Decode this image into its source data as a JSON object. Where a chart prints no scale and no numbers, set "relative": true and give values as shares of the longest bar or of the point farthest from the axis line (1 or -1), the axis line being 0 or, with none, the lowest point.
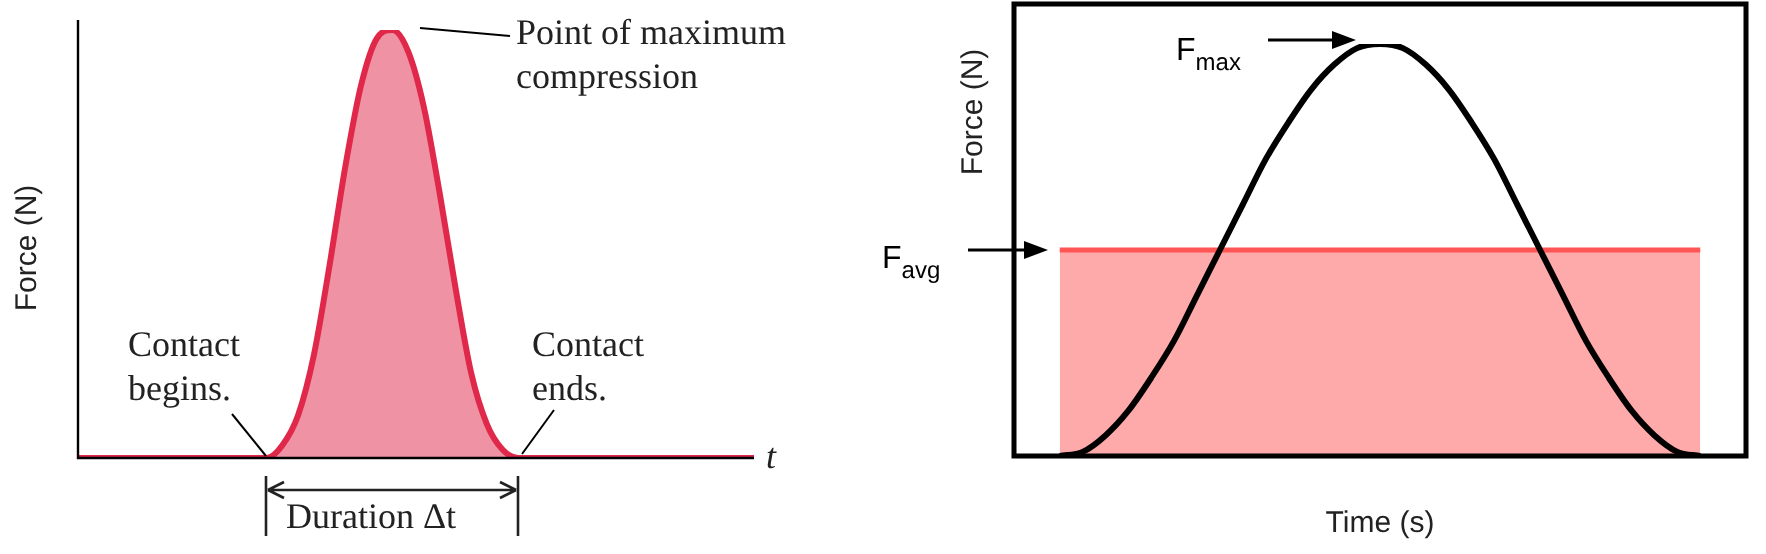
{
  "chart_data": [
    {
      "type": "area",
      "relative": true,
      "xlabel": "t",
      "ylabel": "Force (N)",
      "legend": false,
      "marker": "none",
      "categories": [
        null,
        null,
        null,
        null,
        null,
        null,
        null,
        null,
        null,
        null,
        null,
        null,
        null,
        null,
        null,
        null,
        null,
        null,
        null,
        null,
        null,
        null,
        null,
        null,
        null,
        null,
        null,
        null,
        null,
        null,
        null,
        null,
        null,
        null,
        null,
        null,
        null,
        null,
        null,
        null,
        null,
        null,
        null,
        null
      ],
      "series": [
        {
          "color": "#e0284a",
          "values": [
            0,
            0,
            0,
            0,
            0,
            0,
            0,
            0,
            0,
            0,
            0,
            0,
            0,
            0.03,
            0.1,
            0.24,
            0.45,
            0.68,
            0.87,
            0.98,
            1,
            0.95,
            0.82,
            0.62,
            0.4,
            0.2,
            0.08,
            0.02,
            0,
            0,
            0,
            0,
            0,
            0,
            0,
            0,
            0,
            0,
            0,
            0,
            0,
            0,
            0,
            0
          ]
        }
      ],
      "annotations": [
        "Point of maximum compression",
        "Contact begins.",
        "Contact ends.",
        "Duration Δt"
      ]
    },
    {
      "type": "line",
      "relative": true,
      "xlabel": "Time (s)",
      "ylabel": "Force (N)",
      "legend": false,
      "marker": "none",
      "categories": [
        null,
        null,
        null,
        null,
        null,
        null,
        null,
        null,
        null,
        null,
        null,
        null,
        null,
        null,
        null,
        null,
        null,
        null,
        null,
        null,
        null,
        null,
        null,
        null,
        null,
        null,
        null,
        null,
        null,
        null,
        null,
        null,
        null
      ],
      "series": [
        {
          "type": "area",
          "color": "#ff5555",
          "values": [
            null,
            null,
            0.5,
            0.5,
            0.5,
            0.5,
            0.5,
            0.5,
            0.5,
            0.5,
            0.5,
            0.5,
            0.5,
            0.5,
            0.5,
            0.5,
            0.5,
            0.5,
            0.5,
            0.5,
            0.5,
            0.5,
            0.5,
            0.5,
            0.5,
            0.5,
            0.5,
            0.5,
            0.5,
            0.5,
            0.5,
            null,
            null
          ]
        },
        {
          "color": "#000000",
          "values": [
            null,
            null,
            0,
            0.01,
            0.05,
            0.11,
            0.19,
            0.28,
            0.39,
            0.5,
            0.61,
            0.72,
            0.81,
            0.89,
            0.95,
            0.99,
            1,
            0.99,
            0.95,
            0.89,
            0.81,
            0.72,
            0.61,
            0.5,
            0.39,
            0.28,
            0.19,
            0.11,
            0.05,
            0.01,
            0,
            null,
            null
          ]
        }
      ],
      "annotations": [
        "F$_{max}$",
        "F$_{avg}$"
      ]
    }
  ]
}
